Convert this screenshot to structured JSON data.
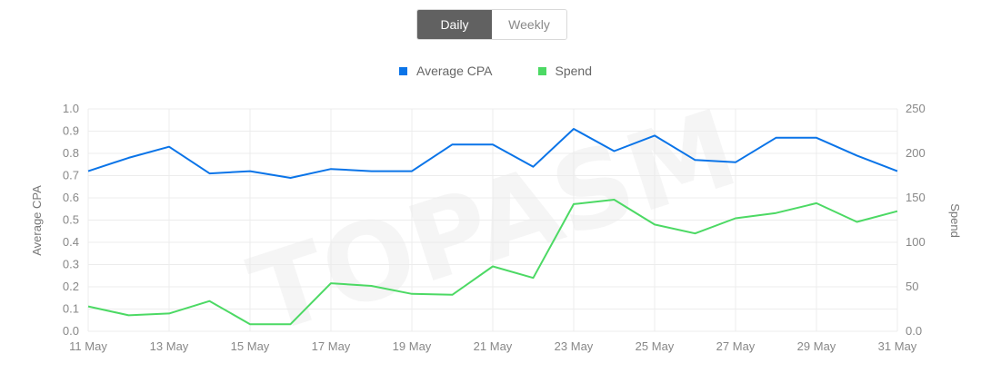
{
  "toggle": {
    "daily_label": "Daily",
    "weekly_label": "Weekly",
    "selected": "Daily"
  },
  "watermark": "TOPASM",
  "colors": {
    "cpa": "#0a74e8",
    "spend": "#4cd964",
    "grid": "#ececec",
    "active_toggle": "#616161"
  },
  "chart_data": {
    "type": "line",
    "categories": [
      "11 May",
      "12 May",
      "13 May",
      "14 May",
      "15 May",
      "16 May",
      "17 May",
      "18 May",
      "19 May",
      "20 May",
      "21 May",
      "22 May",
      "23 May",
      "24 May",
      "25 May",
      "26 May",
      "27 May",
      "28 May",
      "29 May",
      "30 May",
      "31 May"
    ],
    "x_tick_labels": [
      "11 May",
      "13 May",
      "15 May",
      "17 May",
      "19 May",
      "21 May",
      "23 May",
      "25 May",
      "27 May",
      "29 May",
      "31 May"
    ],
    "series": [
      {
        "name": "Average CPA",
        "axis": "left",
        "color": "#0a74e8",
        "values": [
          0.72,
          0.78,
          0.83,
          0.71,
          0.72,
          0.69,
          0.73,
          0.72,
          0.72,
          0.84,
          0.84,
          0.74,
          0.91,
          0.81,
          0.88,
          0.77,
          0.76,
          0.87,
          0.87,
          0.79,
          0.72
        ]
      },
      {
        "name": "Spend",
        "axis": "right",
        "color": "#4cd964",
        "values": [
          28,
          18,
          20,
          34,
          8,
          8,
          54,
          51,
          42,
          41,
          73,
          60,
          143,
          148,
          120,
          110,
          127,
          133,
          144,
          123,
          135
        ]
      }
    ],
    "ylabel_left": "Average CPA",
    "ylabel_right": "Spend",
    "ylim_left": [
      0,
      1.0
    ],
    "ylim_right": [
      0,
      250
    ],
    "yticks_left": [
      "0.0",
      "0.1",
      "0.2",
      "0.3",
      "0.4",
      "0.5",
      "0.6",
      "0.7",
      "0.8",
      "0.9",
      "1.0"
    ],
    "yticks_right": [
      "0.0",
      "50",
      "100",
      "150",
      "200",
      "250"
    ],
    "grid": true,
    "legend_position": "top-center"
  }
}
